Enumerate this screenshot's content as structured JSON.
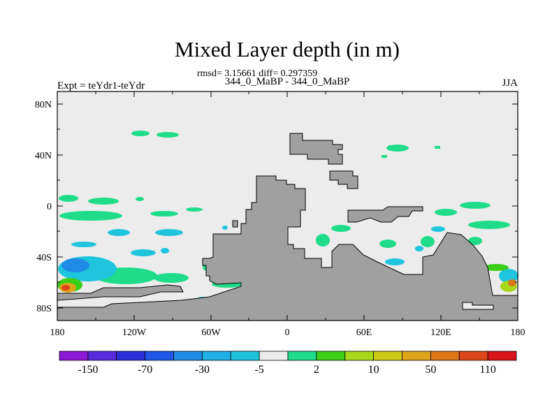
{
  "title": "Mixed Layer depth (in m)",
  "stats_line": "rmsd= 3.15661 diff= 0.297359",
  "subtitle_center": "344_0_MaBP - 344_0_MaBP",
  "subtitle_left": "Expt = teYdr1-teYdr",
  "subtitle_right": "JJA",
  "lat_ticks": [
    "80N",
    "40N",
    "0",
    "40S",
    "80S"
  ],
  "lon_ticks": [
    "180",
    "120W",
    "60W",
    "0",
    "60E",
    "120E",
    "180"
  ],
  "colorbar": {
    "colors": [
      "#8a1ad6",
      "#5a2bdc",
      "#2a30d8",
      "#1f56e6",
      "#1f8be6",
      "#1fb0e6",
      "#1fc4dd",
      "#ececec",
      "#1fdc8a",
      "#3ccf1a",
      "#a8d81a",
      "#cfc91a",
      "#dca51a",
      "#dc781a",
      "#dc461a",
      "#d8141a"
    ],
    "labels": [
      "-150",
      "-70",
      "-30",
      "-5",
      "2",
      "10",
      "50",
      "110"
    ]
  },
  "colors": {
    "land": "#a0a0a0",
    "ocean_background": "#ececec"
  }
}
